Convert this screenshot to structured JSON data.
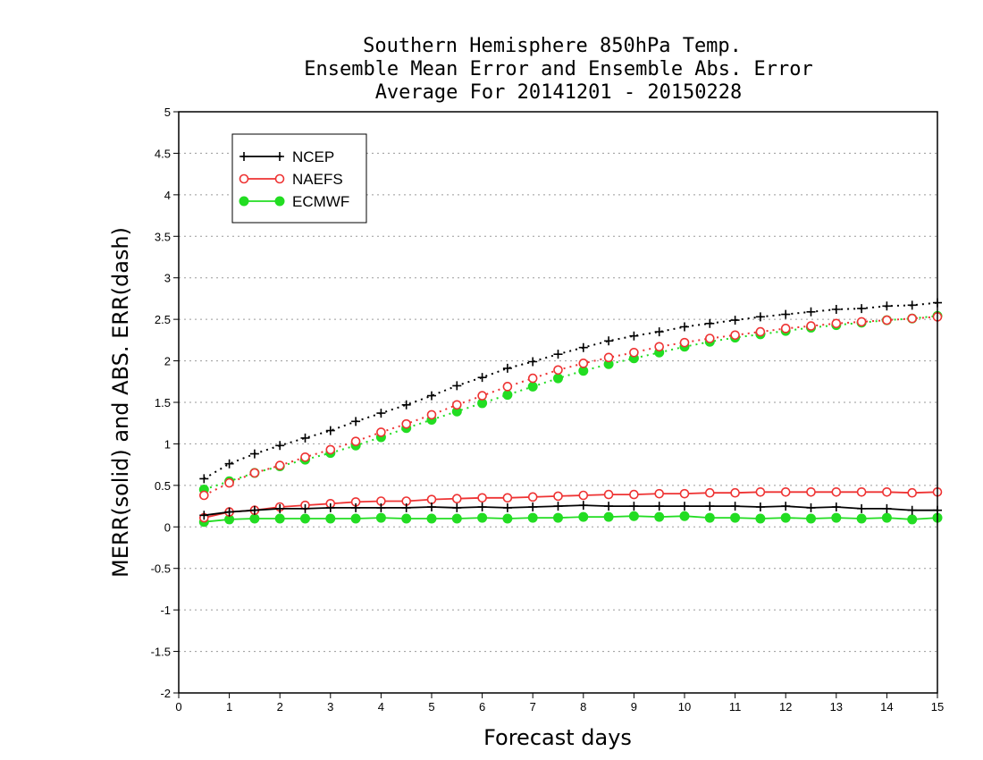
{
  "chart_data": {
    "type": "line",
    "title_lines": [
      "Southern Hemisphere 850hPa Temp.",
      "Ensemble Mean Error and Ensemble Abs. Error",
      "Average For 20141201 - 20150228"
    ],
    "xlabel": "Forecast days",
    "ylabel": "MERR(solid) and ABS. ERR(dash)",
    "xlim": [
      0,
      15
    ],
    "ylim": [
      -2,
      5
    ],
    "xticks": [
      "0",
      "1",
      "2",
      "3",
      "4",
      "5",
      "6",
      "7",
      "8",
      "9",
      "10",
      "11",
      "12",
      "13",
      "14",
      "15"
    ],
    "yticks": [
      "-2",
      "-1.5",
      "-1",
      "-0.5",
      "0",
      "0.5",
      "1",
      "1.5",
      "2",
      "2.5",
      "3",
      "3.5",
      "4",
      "4.5",
      "5"
    ],
    "grid": "horizontal-dotted",
    "legend_placement": "top-left",
    "x": [
      0.5,
      1,
      1.5,
      2,
      2.5,
      3,
      3.5,
      4,
      4.5,
      5,
      5.5,
      6,
      6.5,
      7,
      7.5,
      8,
      8.5,
      9,
      9.5,
      10,
      10.5,
      11,
      11.5,
      12,
      12.5,
      13,
      13.5,
      14,
      14.5,
      15
    ],
    "series": [
      {
        "name": "NCEP",
        "color": "#000000",
        "marker": "plus",
        "merr": [
          0.14,
          0.18,
          0.2,
          0.22,
          0.22,
          0.23,
          0.23,
          0.23,
          0.23,
          0.24,
          0.23,
          0.24,
          0.23,
          0.24,
          0.25,
          0.26,
          0.25,
          0.25,
          0.25,
          0.25,
          0.25,
          0.25,
          0.24,
          0.25,
          0.23,
          0.24,
          0.22,
          0.22,
          0.2,
          0.2
        ],
        "abs_err": [
          0.58,
          0.76,
          0.88,
          0.98,
          1.07,
          1.16,
          1.27,
          1.37,
          1.47,
          1.58,
          1.7,
          1.8,
          1.91,
          1.99,
          2.08,
          2.16,
          2.24,
          2.3,
          2.35,
          2.41,
          2.45,
          2.49,
          2.53,
          2.56,
          2.59,
          2.62,
          2.63,
          2.66,
          2.67,
          2.7
        ]
      },
      {
        "name": "NAEFS",
        "color": "#ee3333",
        "marker": "open-circle",
        "merr": [
          0.11,
          0.18,
          0.2,
          0.24,
          0.26,
          0.28,
          0.3,
          0.31,
          0.31,
          0.33,
          0.34,
          0.35,
          0.35,
          0.36,
          0.37,
          0.38,
          0.39,
          0.39,
          0.4,
          0.4,
          0.41,
          0.41,
          0.42,
          0.42,
          0.42,
          0.42,
          0.42,
          0.42,
          0.41,
          0.42
        ],
        "abs_err": [
          0.38,
          0.53,
          0.65,
          0.74,
          0.84,
          0.93,
          1.03,
          1.14,
          1.24,
          1.35,
          1.47,
          1.58,
          1.69,
          1.79,
          1.89,
          1.97,
          2.04,
          2.1,
          2.17,
          2.22,
          2.27,
          2.31,
          2.35,
          2.39,
          2.42,
          2.45,
          2.47,
          2.49,
          2.51,
          2.53
        ]
      },
      {
        "name": "ECMWF",
        "color": "#22dd22",
        "marker": "filled-circle",
        "merr": [
          0.06,
          0.09,
          0.1,
          0.1,
          0.1,
          0.1,
          0.1,
          0.11,
          0.1,
          0.1,
          0.1,
          0.11,
          0.1,
          0.11,
          0.11,
          0.12,
          0.12,
          0.13,
          0.12,
          0.13,
          0.11,
          0.11,
          0.1,
          0.11,
          0.1,
          0.11,
          0.1,
          0.11,
          0.09,
          0.11
        ],
        "abs_err": [
          0.45,
          0.55,
          0.65,
          0.73,
          0.81,
          0.89,
          0.98,
          1.08,
          1.19,
          1.29,
          1.39,
          1.49,
          1.59,
          1.69,
          1.79,
          1.88,
          1.96,
          2.03,
          2.1,
          2.17,
          2.23,
          2.28,
          2.32,
          2.36,
          2.4,
          2.43,
          2.46,
          2.49,
          2.51,
          2.54
        ]
      }
    ]
  }
}
